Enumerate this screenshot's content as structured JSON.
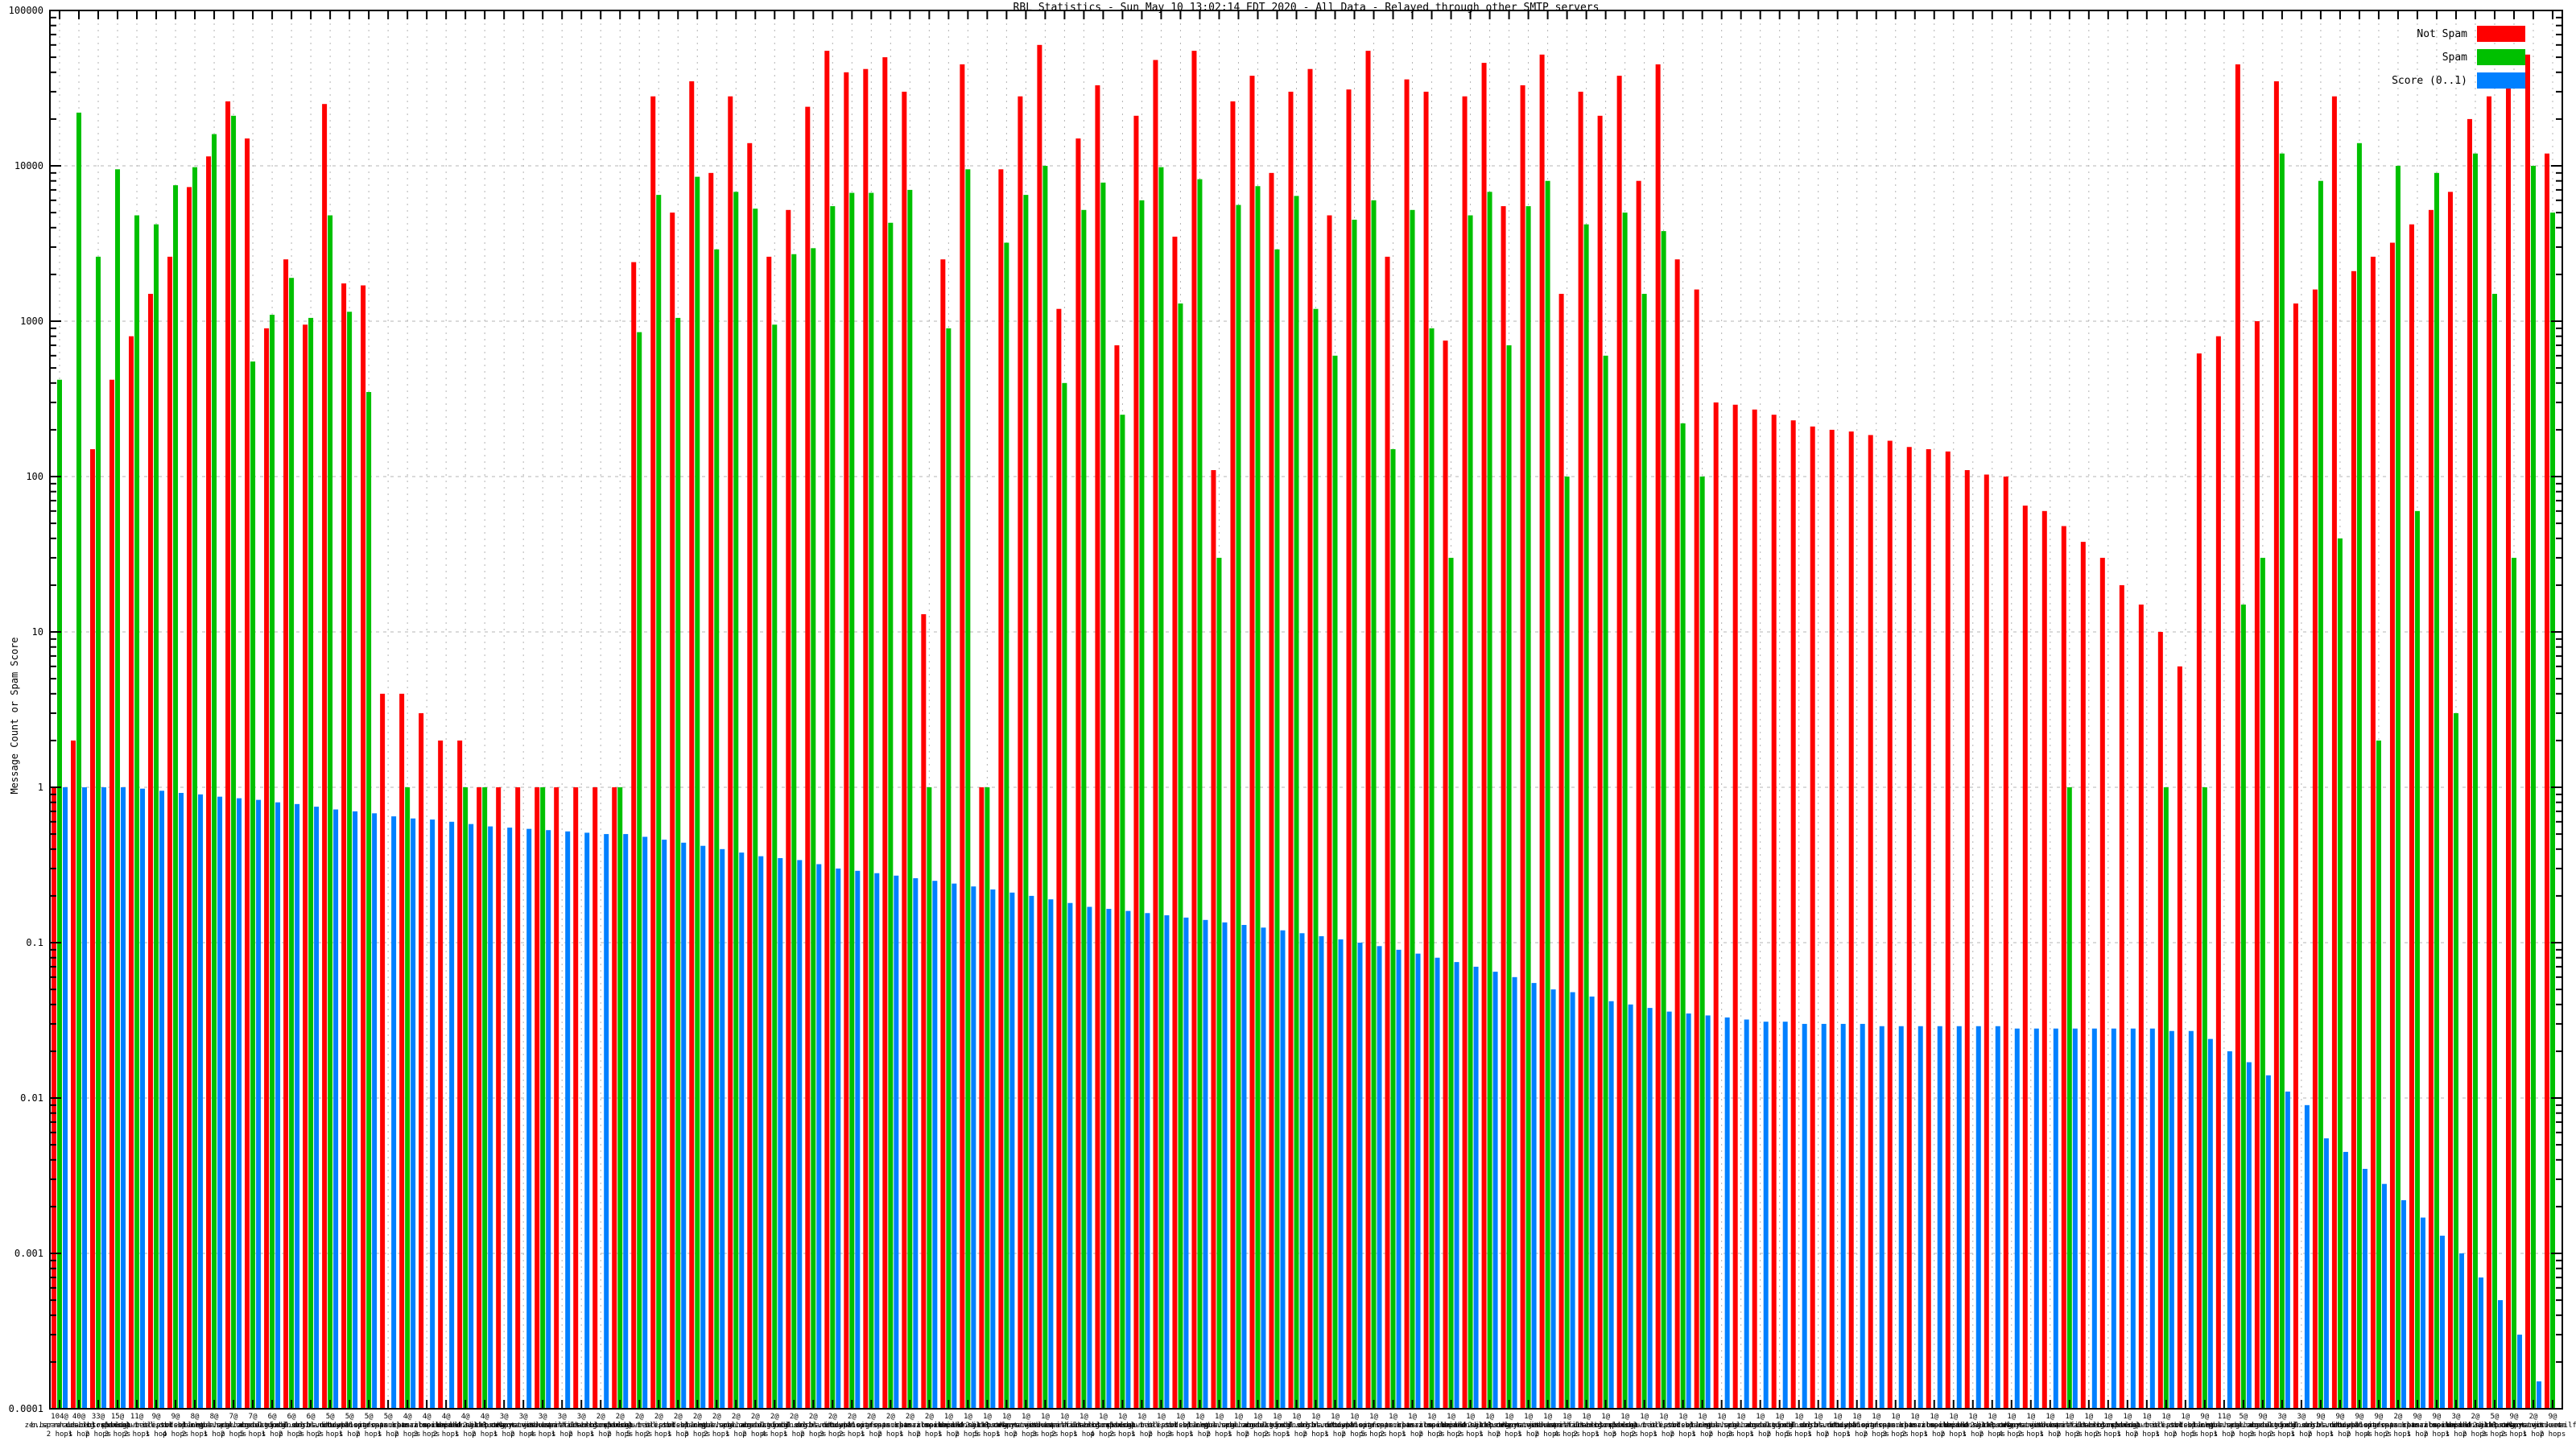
{
  "title": "RBL Statistics - Sun May 10 13:02:14 EDT 2020 - All Data - Relayed through other SMTP servers",
  "y_axis": {
    "label": "Message Count or Spam Score",
    "scale": "log",
    "ticks": [
      {
        "label": "100000",
        "value": 100000
      },
      {
        "label": "10000",
        "value": 10000
      },
      {
        "label": "1000",
        "value": 1000
      },
      {
        "label": "100",
        "value": 100
      },
      {
        "label": "10",
        "value": 10
      },
      {
        "label": "1",
        "value": 1
      },
      {
        "label": "0.1",
        "value": 0.1
      },
      {
        "label": "0.01",
        "value": 0.01
      },
      {
        "label": "0.001",
        "value": 0.001
      },
      {
        "label": "0.0001",
        "value": 0.0001
      }
    ]
  },
  "legend": [
    {
      "label": "Not Spam",
      "color": "#ff0000"
    },
    {
      "label": "Spam",
      "color": "#00c000"
    },
    {
      "label": "Score (0..1)",
      "color": "#0080ff"
    }
  ],
  "chart_data": {
    "type": "bar",
    "subtype": "grouped-impulses",
    "scale": "log",
    "ylim": [
      0.0001,
      100000
    ],
    "grid": true,
    "legend_position": "top-right-inside",
    "series_names": [
      "Not Spam",
      "Spam",
      "Score (0..1)"
    ],
    "colors": {
      "not_spam": "#ff0000",
      "spam": "#00c000",
      "score": "#0080ff"
    },
    "values_note": "values estimated from log axis",
    "labels": [
      "104@zen.spamhaus.org|2 hops",
      "40@b.barracudacentral.org|1 hop",
      "33@dnsbl.sorbs.net|2 hops",
      "15@bl.spamcop.net|3 hops",
      "11@psbl.surriel.com|2 hops",
      "9@dnsbl-1.uceprotect.net|1 hop",
      "9@list.dsbl.org|4 hops",
      "8@sbl.spamhaus.org|2 hops",
      "8@xbl.spamhaus.org|1 hop",
      "7@pbl.spamhaus.org|2 hops",
      "7@cbl.abuseat.org|5 hops",
      "6@dnsbl.njabl.org|1 hop",
      "6@dul.dnsbl.sorbs.net|2 hops",
      "6@ix.dnsbl.manitu.net|3 hops",
      "5@dnsbl.dronebl.org|2 hops",
      "5@db.wpbl.info|1 hop",
      "5@dyna.spamrats.com|2 hops",
      "5@noptr.spamrats.com|1 hop",
      "4@spam.spamrats.com|2 hops",
      "4@bl.mailspike.net|3 hops",
      "4@z.mailspike.net|2 hops",
      "4@combined.njabl.org|1 hop",
      "4@dnsbl-2.uceprotect.net|2 hops",
      "3@dnsbl-3.uceprotect.net|1 hop",
      "3@relays.visi.com|2 hops",
      "3@hostkarma.junkemailfilter.com|4 hops",
      "3@zen.spamhaus.org|1 hop",
      "3@b.barracudacentral.org|2 hops",
      "2@dnsbl.sorbs.net|1 hop",
      "2@bl.spamcop.net|2 hops",
      "2@psbl.surriel.com|5 hops",
      "2@dnsbl-1.uceprotect.net|2 hops",
      "2@list.dsbl.org|1 hop",
      "2@sbl.spamhaus.org|3 hops",
      "2@xbl.spamhaus.org|2 hops",
      "2@pbl.spamhaus.org|1 hop",
      "2@cbl.abuseat.org|2 hops",
      "2@dnsbl.njabl.org|4 hops",
      "2@dul.dnsbl.sorbs.net|1 hop",
      "2@ix.dnsbl.manitu.net|2 hops",
      "2@dnsbl.dronebl.org|3 hops",
      "2@db.wpbl.info|2 hops",
      "2@dyna.spamrats.com|1 hop",
      "2@noptr.spamrats.com|2 hops",
      "2@spam.spamrats.com|1 hop",
      "2@bl.mailspike.net|2 hops",
      "1@z.mailspike.net|1 hop",
      "1@combined.njabl.org|2 hops",
      "1@dnsbl-2.uceprotect.net|5 hops",
      "1@dnsbl-3.uceprotect.net|1 hop",
      "1@relays.visi.com|2 hops",
      "1@hostkarma.junkemailfilter.com|3 hops",
      "1@zen.spamhaus.org|2 hops",
      "1@b.barracudacentral.org|1 hop",
      "1@dnsbl.sorbs.net|4 hops",
      "1@bl.spamcop.net|2 hops",
      "1@psbl.surriel.com|1 hop",
      "1@dnsbl-1.uceprotect.net|2 hops",
      "1@list.dsbl.org|3 hops",
      "1@sbl.spamhaus.org|1 hop",
      "1@xbl.spamhaus.org|2 hops",
      "1@pbl.spamhaus.org|1 hop",
      "1@cbl.abuseat.org|2 hops",
      "1@dnsbl.njabl.org|2 hops",
      "1@dul.dnsbl.sorbs.net|1 hop",
      "1@ix.dnsbl.manitu.net|2 hops",
      "1@dnsbl.dronebl.org|1 hop",
      "1@db.wpbl.info|2 hops",
      "1@dyna.spamrats.com|5 hops",
      "1@noptr.spamrats.com|2 hops",
      "1@spam.spamrats.com|1 hop",
      "1@bl.mailspike.net|2 hops",
      "1@z.mailspike.net|3 hops",
      "1@combined.njabl.org|2 hops",
      "1@dnsbl-2.uceprotect.net|1 hop",
      "1@dnsbl-3.uceprotect.net|2 hops",
      "1@relays.visi.com|1 hop",
      "1@hostkarma.junkemailfilter.com|2 hops",
      "1@zen.spamhaus.org|4 hops",
      "1@b.barracudacentral.org|2 hops",
      "1@dnsbl.sorbs.net|1 hop",
      "1@bl.spamcop.net|3 hops",
      "1@psbl.surriel.com|2 hops",
      "1@dnsbl-1.uceprotect.net|1 hop",
      "1@list.dsbl.org|2 hops",
      "1@sbl.spamhaus.org|1 hop",
      "1@xbl.spamhaus.org|2 hops",
      "1@pbl.spamhaus.org|3 hops",
      "1@cbl.abuseat.org|1 hop",
      "1@dnsbl.njabl.org|2 hops",
      "1@dul.dnsbl.sorbs.net|5 hops",
      "1@ix.dnsbl.manitu.net|1 hop",
      "1@dnsbl.dronebl.org|2 hops",
      "1@db.wpbl.info|1 hop",
      "1@dyna.spamrats.com|2 hops",
      "1@noptr.spamrats.com|3 hops",
      "1@spam.spamrats.com|2 hops",
      "1@bl.mailspike.net|1 hop",
      "1@z.mailspike.net|2 hops",
      "1@combined.njabl.org|1 hop",
      "1@dnsbl-2.uceprotect.net|2 hops",
      "1@dnsbl-3.uceprotect.net|4 hops",
      "1@relays.visi.com|2 hops",
      "1@hostkarma.junkemailfilter.com|1 hop",
      "1@zen.spamhaus.org|2 hops",
      "1@b.barracudacentral.org|3 hops",
      "1@dnsbl.sorbs.net|2 hops",
      "1@bl.spamcop.net|1 hop",
      "1@psbl.surriel.com|2 hops",
      "1@dnsbl-1.uceprotect.net|1 hop",
      "1@list.dsbl.org|2 hops",
      "9@sbl.spamhaus.org|5 hops",
      "11@xbl.spamhaus.org|1 hop",
      "5@pbl.spamhaus.org|2 hops",
      "9@cbl.abuseat.org|3 hops",
      "3@dnsbl.njabl.org|2 hops",
      "3@dul.dnsbl.sorbs.net|1 hop",
      "9@ix.dnsbl.manitu.net|2 hops",
      "9@dnsbl.dronebl.org|1 hop",
      "9@db.wpbl.info|2 hops",
      "9@dyna.spamrats.com|4 hops",
      "2@noptr.spamrats.com|2 hops",
      "9@spam.spamrats.com|1 hop",
      "9@bl.mailspike.net|2 hops",
      "3@z.mailspike.net|1 hop",
      "2@combined.njabl.org|2 hops",
      "5@dnsbl-2.uceprotect.net|3 hops",
      "9@dnsbl-3.uceprotect.net|2 hops",
      "2@relays.visi.com|1 hop",
      "9@hostkarma.junkemailfilter.com|2 hops"
    ],
    "not_spam": [
      1,
      2,
      150,
      420,
      800,
      1500,
      2600,
      7300,
      11500,
      26000,
      15000,
      900,
      2500,
      950,
      25000,
      1750,
      1700,
      4,
      4,
      3,
      2,
      2,
      1,
      1,
      1,
      1,
      1,
      1,
      1,
      1,
      2400,
      28000,
      5000,
      35000,
      9000,
      28000,
      14000,
      2600,
      5200,
      24000,
      55000,
      40000,
      42000,
      50000,
      30000,
      13,
      2500,
      45000,
      1,
      9500,
      28000,
      60000,
      1200,
      15000,
      33000,
      700,
      21000,
      48000,
      3500,
      55000,
      110,
      26000,
      38000,
      9000,
      30000,
      42000,
      4800,
      31000,
      55000,
      2600,
      36000,
      30000,
      750,
      28000,
      46000,
      5500,
      33000,
      52000,
      1500,
      30000,
      21000,
      38000,
      8000,
      45000,
      2500,
      1600,
      300,
      290,
      270,
      250,
      230,
      210,
      200,
      195,
      185,
      170,
      155,
      150,
      145,
      110,
      103,
      100,
      65,
      60,
      48,
      38,
      30,
      20,
      15,
      10,
      6,
      620,
      800,
      45000,
      1000,
      35000,
      1300,
      1600,
      28000,
      2100,
      2600,
      3200,
      4200,
      5200,
      6800,
      20000,
      28000,
      35000,
      52000,
      12000
    ],
    "spam": [
      420,
      22000,
      2600,
      9500,
      4800,
      4200,
      7500,
      9800,
      16000,
      21000,
      550,
      1100,
      1900,
      1050,
      4800,
      1150,
      350,
      0,
      1,
      0,
      0,
      1,
      1,
      0,
      0,
      1,
      0,
      0,
      0,
      1,
      850,
      6500,
      1050,
      8500,
      2900,
      6800,
      5300,
      950,
      2700,
      2950,
      5500,
      6700,
      6700,
      4300,
      7000,
      1,
      900,
      9500,
      1,
      3200,
      6500,
      10000,
      400,
      5200,
      7800,
      250,
      6000,
      9800,
      1300,
      8200,
      30,
      5600,
      7400,
      2900,
      6400,
      1200,
      600,
      4500,
      6000,
      150,
      5200,
      900,
      30,
      4800,
      6800,
      700,
      5500,
      8000,
      100,
      4200,
      600,
      5000,
      1500,
      3800,
      220,
      100,
      0,
      0,
      0,
      0,
      0,
      0,
      0,
      0,
      0,
      0,
      0,
      0,
      0,
      0,
      0,
      0,
      0,
      0,
      1,
      0,
      0,
      0,
      0,
      1,
      0,
      1,
      0,
      15,
      30,
      12000,
      0,
      8000,
      40,
      14000,
      2,
      10000,
      60,
      9000,
      3,
      12000,
      1500,
      30,
      10000,
      5000
    ],
    "score": [
      1,
      1,
      1,
      1,
      0.98,
      0.95,
      0.92,
      0.9,
      0.87,
      0.85,
      0.83,
      0.8,
      0.78,
      0.75,
      0.72,
      0.7,
      0.68,
      0.65,
      0.63,
      0.62,
      0.6,
      0.58,
      0.56,
      0.55,
      0.54,
      0.53,
      0.52,
      0.51,
      0.5,
      0.5,
      0.48,
      0.46,
      0.44,
      0.42,
      0.4,
      0.38,
      0.36,
      0.35,
      0.34,
      0.32,
      0.3,
      0.29,
      0.28,
      0.27,
      0.26,
      0.25,
      0.24,
      0.23,
      0.22,
      0.21,
      0.2,
      0.19,
      0.18,
      0.17,
      0.165,
      0.16,
      0.155,
      0.15,
      0.145,
      0.14,
      0.135,
      0.13,
      0.125,
      0.12,
      0.115,
      0.11,
      0.105,
      0.1,
      0.095,
      0.09,
      0.085,
      0.08,
      0.075,
      0.07,
      0.065,
      0.06,
      0.055,
      0.05,
      0.048,
      0.045,
      0.042,
      0.04,
      0.038,
      0.036,
      0.035,
      0.034,
      0.033,
      0.032,
      0.031,
      0.031,
      0.03,
      0.03,
      0.03,
      0.03,
      0.029,
      0.029,
      0.029,
      0.029,
      0.029,
      0.029,
      0.029,
      0.028,
      0.028,
      0.028,
      0.028,
      0.028,
      0.028,
      0.028,
      0.028,
      0.027,
      0.027,
      0.024,
      0.02,
      0.017,
      0.014,
      0.011,
      0.009,
      0.0055,
      0.0045,
      0.0035,
      0.0028,
      0.0022,
      0.0017,
      0.0013,
      0.001,
      0.0007,
      0.0005,
      0.0003,
      0.00015,
      0.0001
    ]
  }
}
